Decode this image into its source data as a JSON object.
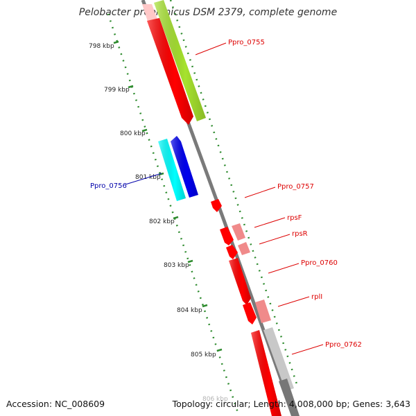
{
  "title": "Pelobacter propionicus DSM 2379, complete genome",
  "footer": {
    "accession": "Accession: NC_008609",
    "summary": "Topology: circular; Length: 4,008,000 bp; Genes: 3,643"
  },
  "colors": {
    "backbone": "#7a7a7a",
    "tick": "#2e8b2e",
    "gene_red": "#ff0000",
    "gene_pink": "#f08a8a",
    "gene_lime": "#a6e22e",
    "gene_cyan": "#00ffff",
    "gene_blue": "#0000ee",
    "gene_gray": "#bdbdbd",
    "label_red": "#dd0000",
    "label_blue": "#0000aa"
  },
  "scale": {
    "unit": "kbp",
    "labels": [
      "798 kbp",
      "799 kbp",
      "800 kbp",
      "801 kbp",
      "802 kbp",
      "803 kbp",
      "804 kbp",
      "805 kbp",
      "806 kbp"
    ]
  },
  "gene_labels": [
    {
      "name": "Ppro_0755",
      "color": "red"
    },
    {
      "name": "Ppro_0756",
      "color": "blue"
    },
    {
      "name": "Ppro_0757",
      "color": "red"
    },
    {
      "name": "rpsF",
      "color": "red"
    },
    {
      "name": "rpsR",
      "color": "red"
    },
    {
      "name": "Ppro_0760",
      "color": "red"
    },
    {
      "name": "rplI",
      "color": "red"
    },
    {
      "name": "Ppro_0762",
      "color": "red"
    }
  ]
}
